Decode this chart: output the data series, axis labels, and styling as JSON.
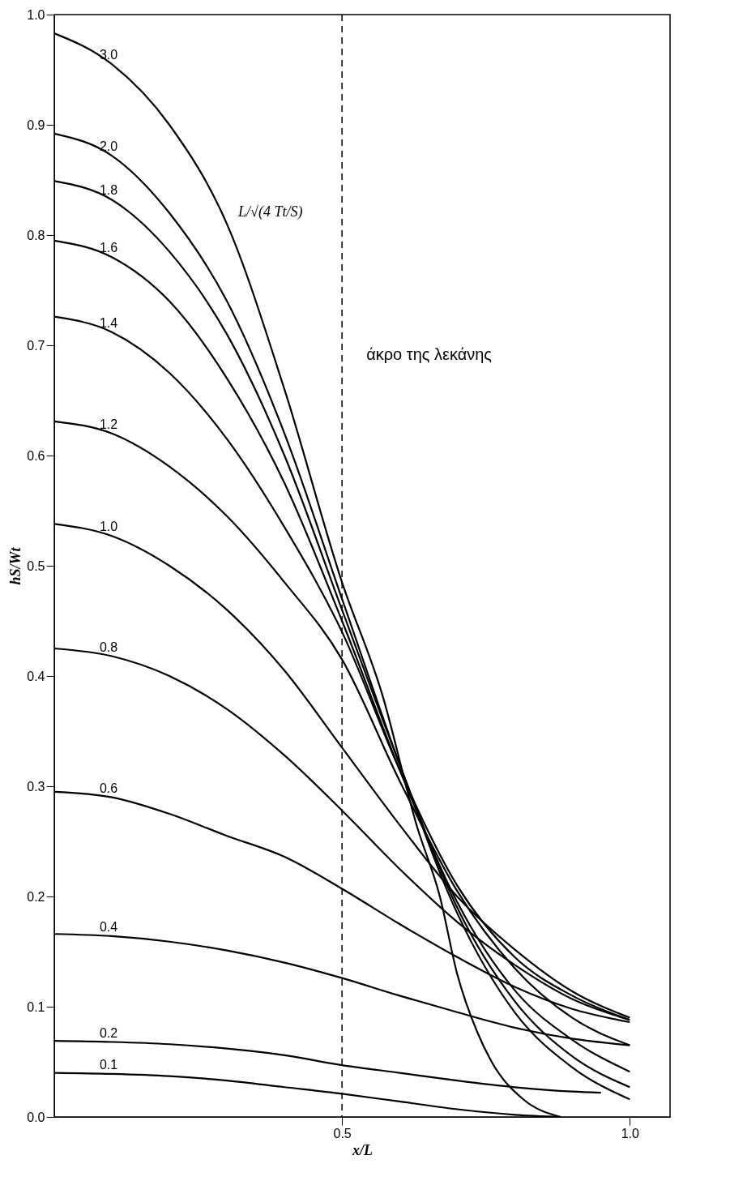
{
  "chart_data": {
    "type": "line",
    "xlabel": "x/L",
    "ylabel": "hS/Wt",
    "xlim": [
      0,
      1.07
    ],
    "ylim": [
      0,
      1.0
    ],
    "xticks": [
      {
        "value": 0.5,
        "label": "0.5"
      },
      {
        "value": 1.0,
        "label": "1.0"
      }
    ],
    "yticks": [
      {
        "value": 0,
        "label": "0.0"
      },
      0.1,
      0.2,
      0.3,
      0.4,
      0.5,
      0.6,
      0.7,
      0.8,
      0.9,
      {
        "value": 1,
        "label": "1.0"
      }
    ],
    "grid": false,
    "marker": "none",
    "line_style": "solid",
    "ref_lines": [
      {
        "axis": "x",
        "value": 0.5,
        "label": "άκρο της λεκάνης",
        "line_style": "dashed",
        "color": "#000000"
      }
    ],
    "annotations": [
      {
        "text": "L/√(4 Tt/S)",
        "x": 0.3,
        "y": 0.81
      }
    ],
    "series": [
      {
        "name": "3.0",
        "color": "#000000",
        "x": [
          0,
          0.1,
          0.2,
          0.3,
          0.4,
          0.5,
          0.57,
          0.63,
          0.67,
          0.7,
          0.735,
          0.76,
          0.815,
          0.88
        ],
        "values": [
          0.983,
          0.955,
          0.9,
          0.81,
          0.66,
          0.485,
          0.383,
          0.264,
          0.2,
          0.13,
          0.077,
          0.05,
          0.016,
          0
        ]
      },
      {
        "name": "2.0",
        "color": "#000000",
        "values": [
          0.892,
          0.872,
          0.82,
          0.74,
          0.62,
          0.47,
          0.32,
          0.185,
          0.095,
          0.045,
          0.016
        ]
      },
      {
        "name": "1.8",
        "color": "#000000",
        "values": [
          0.849,
          0.832,
          0.785,
          0.71,
          0.6,
          0.46,
          0.32,
          0.19,
          0.105,
          0.055,
          0.027
        ]
      },
      {
        "name": "1.6",
        "color": "#000000",
        "values": [
          0.795,
          0.78,
          0.74,
          0.67,
          0.575,
          0.45,
          0.315,
          0.195,
          0.115,
          0.07,
          0.041
        ]
      },
      {
        "name": "1.4",
        "color": "#000000",
        "values": [
          0.726,
          0.712,
          0.675,
          0.615,
          0.535,
          0.44,
          0.315,
          0.21,
          0.145,
          0.11,
          0.088
        ]
      },
      {
        "name": "1.2",
        "color": "#000000",
        "values": [
          0.631,
          0.62,
          0.59,
          0.545,
          0.485,
          0.415,
          0.305,
          0.205,
          0.135,
          0.09,
          0.065
        ]
      },
      {
        "name": "1.0",
        "color": "#000000",
        "values": [
          0.538,
          0.527,
          0.5,
          0.46,
          0.405,
          0.335,
          0.265,
          0.2,
          0.152,
          0.114,
          0.09
        ]
      },
      {
        "name": "0.8",
        "color": "#000000",
        "values": [
          0.425,
          0.418,
          0.4,
          0.37,
          0.328,
          0.278,
          0.225,
          0.177,
          0.138,
          0.107,
          0.088
        ]
      },
      {
        "name": "0.6",
        "color": "#000000",
        "values": [
          0.295,
          0.29,
          0.275,
          0.255,
          0.236,
          0.207,
          0.175,
          0.145,
          0.118,
          0.098,
          0.086
        ]
      },
      {
        "name": "0.4",
        "color": "#000000",
        "values": [
          0.166,
          0.164,
          0.159,
          0.151,
          0.14,
          0.126,
          0.11,
          0.095,
          0.081,
          0.071,
          0.065
        ]
      },
      {
        "name": "0.2",
        "color": "#000000",
        "x": [
          0,
          0.1,
          0.2,
          0.3,
          0.4,
          0.5,
          0.6,
          0.7,
          0.8,
          0.9,
          0.95
        ],
        "values": [
          0.069,
          0.068,
          0.066,
          0.062,
          0.056,
          0.047,
          0.04,
          0.033,
          0.027,
          0.023,
          0.022
        ]
      },
      {
        "name": "0.1",
        "color": "#000000",
        "x": [
          0,
          0.1,
          0.2,
          0.3,
          0.4,
          0.5,
          0.6,
          0.7,
          0.8,
          0.88
        ],
        "values": [
          0.04,
          0.039,
          0.037,
          0.033,
          0.027,
          0.021,
          0.014,
          0.007,
          0.002,
          0
        ]
      }
    ],
    "x": [
      0,
      0.1,
      0.2,
      0.3,
      0.4,
      0.5,
      0.6,
      0.7,
      0.8,
      0.9,
      1.0
    ]
  }
}
